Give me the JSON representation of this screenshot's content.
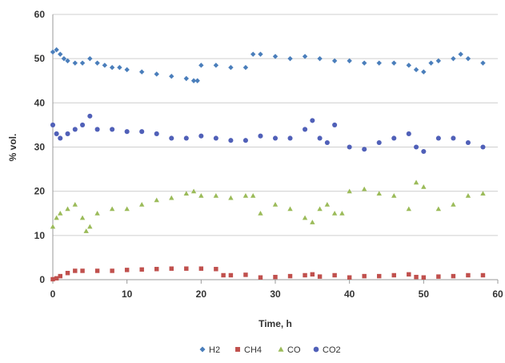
{
  "chart_data": {
    "type": "scatter",
    "title": "",
    "xlabel": "Time, h",
    "ylabel": "% vol.",
    "xlim": [
      0,
      60
    ],
    "ylim": [
      0,
      60
    ],
    "x_ticks": [
      "0",
      "10",
      "20",
      "30",
      "40",
      "50",
      "60"
    ],
    "y_ticks": [
      "0",
      "10",
      "20",
      "30",
      "40",
      "50",
      "60"
    ],
    "grid": "horizontal",
    "legend_position": "bottom",
    "series": [
      {
        "name": "H2",
        "color": "#4A7EBB",
        "marker": "diamond",
        "x": [
          0,
          0.5,
          1,
          1.5,
          2,
          3,
          4,
          5,
          6,
          7,
          8,
          9,
          10,
          12,
          14,
          16,
          18,
          19,
          19.5,
          20,
          22,
          24,
          26,
          27,
          28,
          30,
          32,
          34,
          36,
          38,
          40,
          42,
          44,
          46,
          48,
          49,
          50,
          51,
          52,
          54,
          55,
          56,
          58
        ],
        "y": [
          51.5,
          52,
          51,
          50,
          49.5,
          49,
          49,
          50,
          49,
          48.5,
          48,
          48,
          47.5,
          47,
          46.5,
          46,
          45.5,
          45,
          45,
          48.5,
          48.5,
          48,
          48,
          51,
          51,
          50.5,
          50,
          50.5,
          50,
          49.5,
          49.5,
          49,
          49,
          49,
          48.5,
          47.5,
          47,
          49,
          49.5,
          50,
          51,
          50,
          49
        ]
      },
      {
        "name": "CH4",
        "color": "#C0504D",
        "marker": "square",
        "x": [
          0,
          0.5,
          1,
          2,
          3,
          4,
          6,
          8,
          10,
          12,
          14,
          16,
          18,
          20,
          22,
          23,
          24,
          26,
          28,
          30,
          32,
          34,
          35,
          36,
          38,
          40,
          42,
          44,
          46,
          48,
          49,
          50,
          52,
          54,
          56,
          58
        ],
        "y": [
          0.1,
          0.3,
          0.8,
          1.5,
          2,
          2,
          2,
          2,
          2.2,
          2.3,
          2.4,
          2.5,
          2.5,
          2.5,
          2.4,
          1,
          1,
          1.1,
          0.5,
          0.6,
          0.8,
          1,
          1.2,
          0.7,
          1,
          0.5,
          0.8,
          0.8,
          1,
          1.2,
          0.6,
          0.5,
          0.7,
          0.8,
          1,
          1
        ]
      },
      {
        "name": "CO",
        "color": "#9BBB59",
        "marker": "triangle",
        "x": [
          0,
          0.5,
          1,
          2,
          3,
          4,
          4.5,
          5,
          6,
          8,
          10,
          12,
          14,
          16,
          18,
          19,
          20,
          22,
          24,
          26,
          27,
          28,
          30,
          32,
          34,
          35,
          36,
          37,
          38,
          39,
          40,
          42,
          44,
          46,
          48,
          49,
          50,
          52,
          54,
          56,
          58
        ],
        "y": [
          12,
          14,
          15,
          16,
          17,
          14,
          11,
          12,
          15,
          16,
          16,
          17,
          18,
          18.5,
          19.5,
          20,
          19,
          19,
          18.5,
          19,
          19,
          15,
          17,
          16,
          14,
          13,
          16,
          17,
          15,
          15,
          20,
          20.5,
          19.5,
          19,
          16,
          22,
          21,
          16,
          17,
          19,
          19.5
        ]
      },
      {
        "name": "CO2",
        "color": "#5060B8",
        "marker": "circle",
        "x": [
          0,
          0.5,
          1,
          2,
          3,
          4,
          5,
          6,
          8,
          10,
          12,
          14,
          16,
          18,
          20,
          22,
          24,
          26,
          28,
          30,
          32,
          34,
          35,
          36,
          37,
          38,
          40,
          42,
          44,
          46,
          48,
          49,
          50,
          52,
          54,
          56,
          58
        ],
        "y": [
          35,
          33,
          32,
          33,
          34,
          35,
          37,
          34,
          34,
          33.5,
          33.5,
          33,
          32,
          32,
          32.5,
          32,
          31.5,
          31.5,
          32.5,
          32,
          32,
          34,
          36,
          32,
          31,
          35,
          30,
          29.5,
          31,
          32,
          33,
          30,
          29,
          32,
          32,
          31,
          30
        ]
      }
    ]
  }
}
